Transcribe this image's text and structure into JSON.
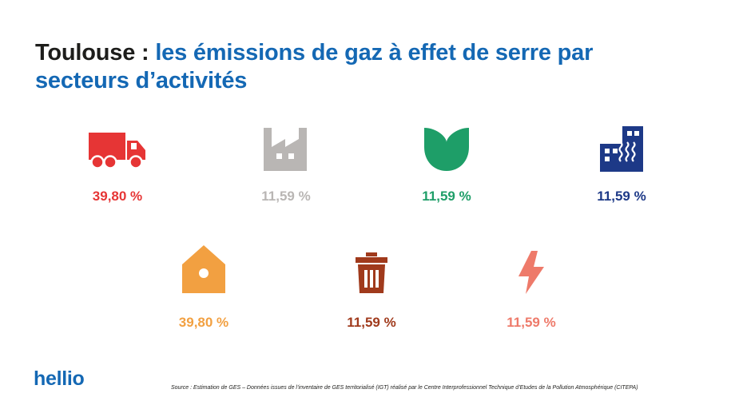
{
  "title": {
    "city": "Toulouse :",
    "rest": "les émissions de gaz à effet de serre par secteurs d’activités"
  },
  "sectors": [
    {
      "icon": "truck-icon",
      "value": "39,80 %",
      "color": "#e63535"
    },
    {
      "icon": "factory-icon",
      "value": "11,59 %",
      "color": "#b9b6b4"
    },
    {
      "icon": "leaf-icon",
      "value": "11,59 %",
      "color": "#1e9e68"
    },
    {
      "icon": "building-icon",
      "value": "11,59 %",
      "color": "#1d3987"
    },
    {
      "icon": "house-icon",
      "value": "39,80 %",
      "color": "#f2a041"
    },
    {
      "icon": "trash-icon",
      "value": "11,59 %",
      "color": "#a03a1c"
    },
    {
      "icon": "lightning-icon",
      "value": "11,59 %",
      "color": "#ee7a6a"
    }
  ],
  "footer": {
    "logo": "hellio",
    "source": "Source : Estimation de GES – Données issues de l’inventaire de GES territorialisé (IGT) réalisé par le Centre Interprofessionnel Technique d’Etudes de la Pollution Atmosphérique (CITEPA)"
  }
}
